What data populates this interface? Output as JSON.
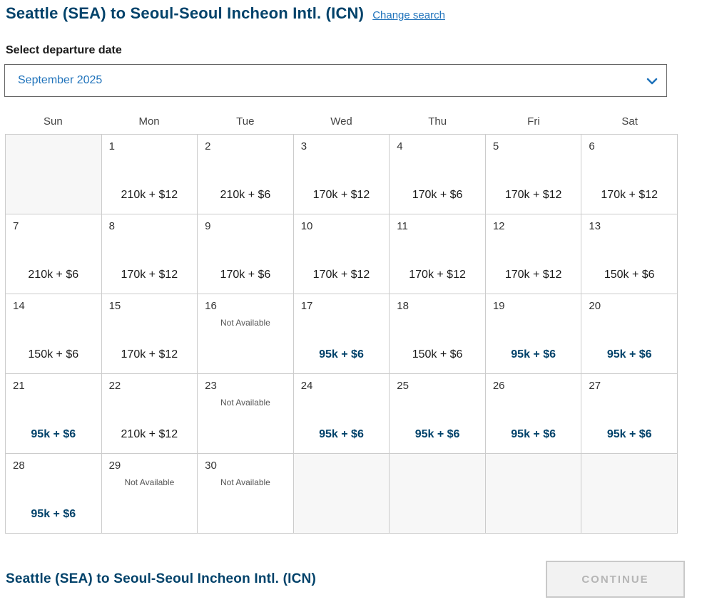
{
  "colors": {
    "brand_navy": "#01426a",
    "link_blue": "#2073bb",
    "grid_border": "#cccccc",
    "empty_cell_bg": "#f7f7f7",
    "disabled_button_bg": "#f2f2f2",
    "disabled_button_text": "#b5b5b5"
  },
  "header": {
    "title": "Seattle (SEA) to Seoul-Seoul Incheon Intl. (ICN)",
    "change_search_label": "Change search"
  },
  "date_select": {
    "label": "Select departure date",
    "selected_value": "September 2025",
    "chevron_icon": "chevron-down"
  },
  "calendar": {
    "day_headers": [
      "Sun",
      "Mon",
      "Tue",
      "Wed",
      "Thu",
      "Fri",
      "Sat"
    ],
    "not_available_label": "Not Available",
    "weeks": [
      [
        {
          "day": "",
          "state": "empty"
        },
        {
          "day": "1",
          "price": "210k + $12",
          "state": "standard"
        },
        {
          "day": "2",
          "price": "210k + $6",
          "state": "standard"
        },
        {
          "day": "3",
          "price": "170k + $12",
          "state": "standard"
        },
        {
          "day": "4",
          "price": "170k + $6",
          "state": "standard"
        },
        {
          "day": "5",
          "price": "170k + $12",
          "state": "standard"
        },
        {
          "day": "6",
          "price": "170k + $12",
          "state": "standard"
        }
      ],
      [
        {
          "day": "7",
          "price": "210k + $6",
          "state": "standard"
        },
        {
          "day": "8",
          "price": "170k + $12",
          "state": "standard"
        },
        {
          "day": "9",
          "price": "170k + $6",
          "state": "standard"
        },
        {
          "day": "10",
          "price": "170k + $12",
          "state": "standard"
        },
        {
          "day": "11",
          "price": "170k + $12",
          "state": "standard"
        },
        {
          "day": "12",
          "price": "170k + $12",
          "state": "standard"
        },
        {
          "day": "13",
          "price": "150k + $6",
          "state": "standard"
        }
      ],
      [
        {
          "day": "14",
          "price": "150k + $6",
          "state": "standard"
        },
        {
          "day": "15",
          "price": "170k + $12",
          "state": "standard"
        },
        {
          "day": "16",
          "state": "unavailable"
        },
        {
          "day": "17",
          "price": "95k + $6",
          "state": "deal"
        },
        {
          "day": "18",
          "price": "150k + $6",
          "state": "standard"
        },
        {
          "day": "19",
          "price": "95k + $6",
          "state": "deal"
        },
        {
          "day": "20",
          "price": "95k + $6",
          "state": "deal"
        }
      ],
      [
        {
          "day": "21",
          "price": "95k + $6",
          "state": "deal"
        },
        {
          "day": "22",
          "price": "210k + $12",
          "state": "standard"
        },
        {
          "day": "23",
          "state": "unavailable"
        },
        {
          "day": "24",
          "price": "95k + $6",
          "state": "deal"
        },
        {
          "day": "25",
          "price": "95k + $6",
          "state": "deal"
        },
        {
          "day": "26",
          "price": "95k + $6",
          "state": "deal"
        },
        {
          "day": "27",
          "price": "95k + $6",
          "state": "deal"
        }
      ],
      [
        {
          "day": "28",
          "price": "95k + $6",
          "state": "deal"
        },
        {
          "day": "29",
          "state": "unavailable"
        },
        {
          "day": "30",
          "state": "unavailable"
        },
        {
          "day": "",
          "state": "empty"
        },
        {
          "day": "",
          "state": "empty"
        },
        {
          "day": "",
          "state": "empty"
        },
        {
          "day": "",
          "state": "empty"
        }
      ]
    ]
  },
  "footer": {
    "title": "Seattle (SEA) to Seoul-Seoul Incheon Intl. (ICN)",
    "continue_label": "CONTINUE"
  }
}
